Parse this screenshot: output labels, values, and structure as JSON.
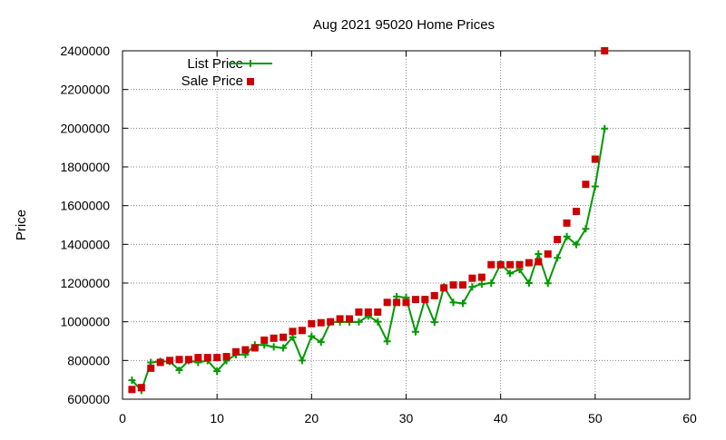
{
  "chart_data": {
    "type": "line",
    "title": "Aug 2021 95020 Home Prices",
    "xlabel": "",
    "ylabel": "Price",
    "xlim": [
      0,
      60
    ],
    "ylim": [
      600000,
      2400000
    ],
    "xticks": [
      0,
      10,
      20,
      30,
      40,
      50,
      60
    ],
    "yticks": [
      600000,
      800000,
      1000000,
      1200000,
      1400000,
      1600000,
      1800000,
      2000000,
      2200000,
      2400000
    ],
    "grid": true,
    "legend_position": "top-left",
    "colors": {
      "list": "#009900",
      "sale": "#cc0000",
      "grid": "#888888",
      "axis": "#000000"
    },
    "series": [
      {
        "name": "List Price",
        "style": "lines+crosses",
        "x": [
          1,
          2,
          3,
          4,
          5,
          6,
          7,
          8,
          9,
          10,
          11,
          12,
          13,
          14,
          15,
          16,
          17,
          18,
          19,
          20,
          21,
          22,
          23,
          24,
          25,
          26,
          27,
          28,
          29,
          30,
          31,
          32,
          33,
          34,
          35,
          36,
          37,
          38,
          39,
          40,
          41,
          42,
          43,
          44,
          45,
          46,
          47,
          48,
          49,
          50,
          51
        ],
        "y": [
          698000,
          645000,
          790000,
          795000,
          795000,
          750000,
          799000,
          790000,
          799000,
          745000,
          799000,
          830000,
          830000,
          880000,
          880000,
          870000,
          865000,
          920000,
          800000,
          925000,
          895000,
          999000,
          999000,
          999000,
          999000,
          1030000,
          1000000,
          899000,
          1130000,
          1125000,
          948000,
          1115000,
          998000,
          1180000,
          1100000,
          1095000,
          1180000,
          1195000,
          1200000,
          1299000,
          1250000,
          1270000,
          1200000,
          1350000,
          1199000,
          1330000,
          1440000,
          1399000,
          1480000,
          1699000,
          1998000
        ]
      },
      {
        "name": "Sale Price",
        "style": "points",
        "x": [
          1,
          2,
          3,
          4,
          5,
          6,
          7,
          8,
          9,
          10,
          11,
          12,
          13,
          14,
          15,
          16,
          17,
          18,
          19,
          20,
          21,
          22,
          23,
          24,
          25,
          26,
          27,
          28,
          29,
          30,
          31,
          32,
          33,
          34,
          35,
          36,
          37,
          38,
          39,
          40,
          41,
          42,
          43,
          44,
          45,
          46,
          47,
          48,
          49,
          50,
          51
        ],
        "y": [
          650000,
          660000,
          760000,
          790000,
          800000,
          805000,
          805000,
          815000,
          815000,
          815000,
          820000,
          845000,
          855000,
          865000,
          905000,
          915000,
          920000,
          950000,
          955000,
          990000,
          995000,
          1000000,
          1015000,
          1015000,
          1050000,
          1050000,
          1050000,
          1100000,
          1100000,
          1100000,
          1115000,
          1115000,
          1135000,
          1175000,
          1190000,
          1190000,
          1225000,
          1230000,
          1295000,
          1295000,
          1295000,
          1295000,
          1305000,
          1310000,
          1350000,
          1425000,
          1510000,
          1570000,
          1710000,
          1840000,
          2400000
        ]
      }
    ]
  }
}
